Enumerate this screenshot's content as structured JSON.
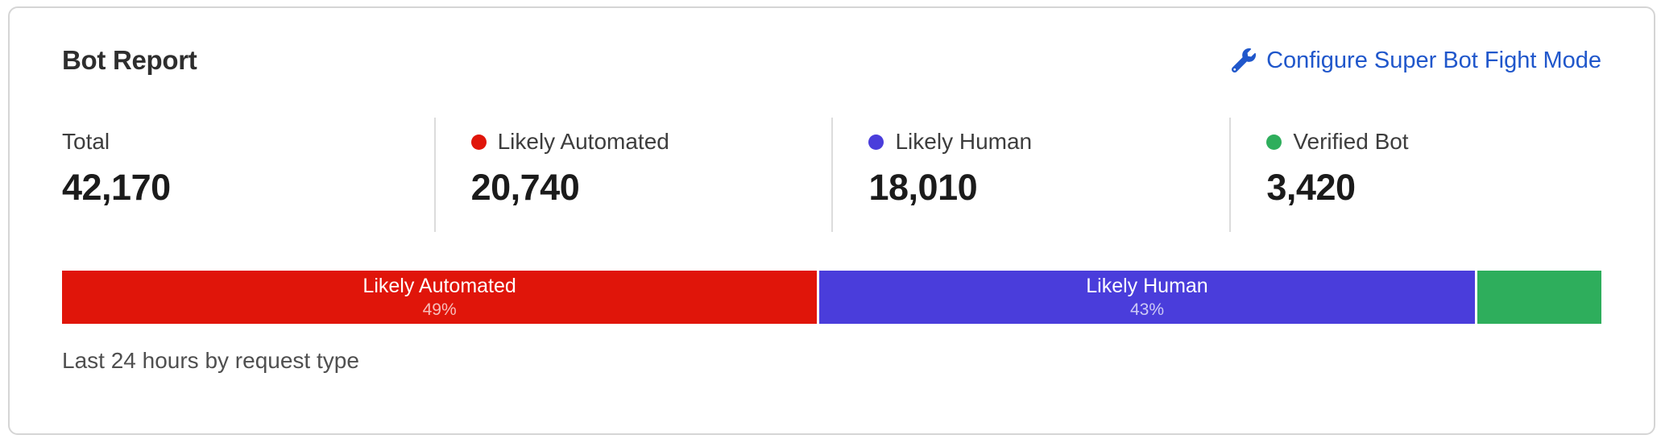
{
  "card": {
    "title": "Bot Report",
    "configure_link": {
      "label": "Configure Super Bot Fight Mode",
      "icon": "wrench-icon",
      "color": "#2057cb"
    },
    "stats": [
      {
        "label": "Total",
        "value": "42,170",
        "dot_color": null
      },
      {
        "label": "Likely Automated",
        "value": "20,740",
        "dot_color": "#e0150a"
      },
      {
        "label": "Likely Human",
        "value": "18,010",
        "dot_color": "#4a3ddb"
      },
      {
        "label": "Verified Bot",
        "value": "3,420",
        "dot_color": "#2eae5c"
      }
    ],
    "caption": "Last 24 hours by request type"
  },
  "chart_data": {
    "type": "bar",
    "stacked": true,
    "title": "Bot Report",
    "caption": "Last 24 hours by request type",
    "total": 42170,
    "categories": [
      "Likely Automated",
      "Likely Human",
      "Verified Bot"
    ],
    "values": [
      20740,
      18010,
      3420
    ],
    "segments": [
      {
        "label": "Likely Automated",
        "percent": 49.2,
        "percent_label": "49%",
        "color": "#e0150a",
        "show_text": true
      },
      {
        "label": "Likely Human",
        "percent": 42.7,
        "percent_label": "43%",
        "color": "#4a3ddb",
        "show_text": true
      },
      {
        "label": "Verified Bot",
        "percent": 8.1,
        "percent_label": "8%",
        "color": "#2eae5c",
        "show_text": false
      }
    ]
  }
}
